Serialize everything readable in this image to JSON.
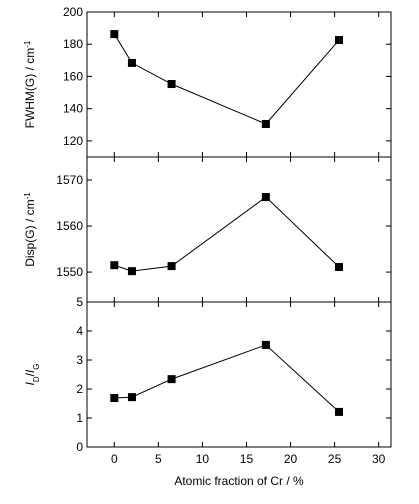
{
  "chart_data": [
    {
      "type": "line",
      "x": [
        0,
        2,
        6.5,
        17.2,
        25.5
      ],
      "series": [
        {
          "color": "#000000",
          "values": [
            186.3,
            168.4,
            155.3,
            130.5,
            182.6
          ]
        }
      ],
      "xlim": [
        -3.1,
        31.4
      ],
      "xticks": [
        0,
        5,
        10,
        15,
        20,
        25,
        30
      ],
      "ylim": [
        110,
        200
      ],
      "yticks": [
        120,
        140,
        160,
        180,
        200
      ],
      "ylabel": [
        {
          "text": "FWHM(G) / cm",
          "style": "normal"
        },
        {
          "text": "-1",
          "style": "sup"
        }
      ]
    },
    {
      "type": "line",
      "x": [
        0,
        2,
        6.5,
        17.2,
        25.5
      ],
      "series": [
        {
          "color": "#000000",
          "values": [
            1551.5,
            1550.2,
            1551.3,
            1566.3,
            1551.1
          ]
        }
      ],
      "xlim": [
        -3.1,
        31.4
      ],
      "xticks": [
        0,
        5,
        10,
        15,
        20,
        25,
        30
      ],
      "ylim": [
        1543.5,
        1575
      ],
      "yticks": [
        1550,
        1560,
        1570
      ],
      "ylabel": [
        {
          "text": "Disp(G) / cm",
          "style": "normal"
        },
        {
          "text": "-1",
          "style": "sup"
        }
      ]
    },
    {
      "type": "line",
      "x": [
        0,
        2,
        6.5,
        17.2,
        25.5
      ],
      "series": [
        {
          "color": "#000000",
          "values": [
            1.69,
            1.72,
            2.34,
            3.52,
            1.21
          ]
        }
      ],
      "xlim": [
        -3.1,
        31.4
      ],
      "xticks": [
        0,
        5,
        10,
        15,
        20,
        25,
        30
      ],
      "ylim": [
        0,
        5
      ],
      "yticks": [
        0,
        1,
        2,
        3,
        4,
        5
      ],
      "ylabel": [
        {
          "text": "I",
          "style": "italic"
        },
        {
          "text": "D",
          "style": "sub"
        },
        {
          "text": "/",
          "style": "normal"
        },
        {
          "text": "I",
          "style": "italic"
        },
        {
          "text": "G",
          "style": "sub"
        }
      ],
      "xlabel": "Atomic fraction of Cr / %"
    }
  ]
}
